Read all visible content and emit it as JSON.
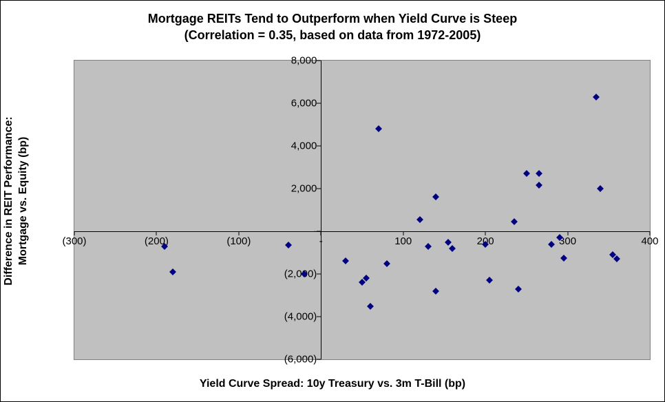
{
  "chart": {
    "type": "scatter",
    "title_line1": "Mortgage REITs Tend to Outperform when Yield Curve is Steep",
    "title_line2": "(Correlation = 0.35, based on data from 1972-2005)",
    "title_fontsize": 18,
    "title_fontweight": "bold",
    "x_axis_label": "Yield Curve Spread:  10y Treasury vs. 3m T-Bill (bp)",
    "y_axis_label_line1": "Difference in REIT Performance:",
    "y_axis_label_line2": "Mortgage vs. Equity (bp)",
    "axis_label_fontsize": 16,
    "axis_label_fontweight": "bold",
    "tick_fontsize": 15,
    "background_color": "#ffffff",
    "plot_background_color": "#c0c0c0",
    "plot_border_color": "#808080",
    "axis_color": "#000000",
    "marker_color": "#000080",
    "marker_style": "diamond",
    "marker_size": 7,
    "frame_border_color": "#000000",
    "xlim": [
      -300,
      400
    ],
    "ylim": [
      -6000,
      8000
    ],
    "x_ticks": [
      {
        "value": -300,
        "label": "(300)"
      },
      {
        "value": -200,
        "label": "(200)"
      },
      {
        "value": -100,
        "label": "(100)"
      },
      {
        "value": 0,
        "label": "-"
      },
      {
        "value": 100,
        "label": "100"
      },
      {
        "value": 200,
        "label": "200"
      },
      {
        "value": 300,
        "label": "300"
      },
      {
        "value": 400,
        "label": "400"
      }
    ],
    "y_ticks": [
      {
        "value": -6000,
        "label": "(6,000)"
      },
      {
        "value": -4000,
        "label": "(4,000)"
      },
      {
        "value": -2000,
        "label": "(2,000)"
      },
      {
        "value": 0,
        "label": "-"
      },
      {
        "value": 2000,
        "label": "2,000"
      },
      {
        "value": 4000,
        "label": "4,000"
      },
      {
        "value": 6000,
        "label": "6,000"
      },
      {
        "value": 8000,
        "label": "8,000"
      }
    ],
    "points": [
      {
        "x": -190,
        "y": -700
      },
      {
        "x": -180,
        "y": -1900
      },
      {
        "x": -40,
        "y": -650
      },
      {
        "x": -20,
        "y": -2000
      },
      {
        "x": 30,
        "y": -1400
      },
      {
        "x": 50,
        "y": -2400
      },
      {
        "x": 55,
        "y": -2200
      },
      {
        "x": 60,
        "y": -3500
      },
      {
        "x": 70,
        "y": 4800
      },
      {
        "x": 80,
        "y": -1500
      },
      {
        "x": 120,
        "y": 540
      },
      {
        "x": 130,
        "y": -700
      },
      {
        "x": 140,
        "y": 1600
      },
      {
        "x": 140,
        "y": -2800
      },
      {
        "x": 155,
        "y": -500
      },
      {
        "x": 160,
        "y": -800
      },
      {
        "x": 200,
        "y": -600
      },
      {
        "x": 205,
        "y": -2300
      },
      {
        "x": 235,
        "y": 450
      },
      {
        "x": 240,
        "y": -2700
      },
      {
        "x": 250,
        "y": 2700
      },
      {
        "x": 265,
        "y": 2700
      },
      {
        "x": 265,
        "y": 2150
      },
      {
        "x": 280,
        "y": -600
      },
      {
        "x": 290,
        "y": -300
      },
      {
        "x": 295,
        "y": -1250
      },
      {
        "x": 335,
        "y": 6300
      },
      {
        "x": 340,
        "y": 2000
      },
      {
        "x": 355,
        "y": -1100
      },
      {
        "x": 360,
        "y": -1300
      }
    ]
  }
}
